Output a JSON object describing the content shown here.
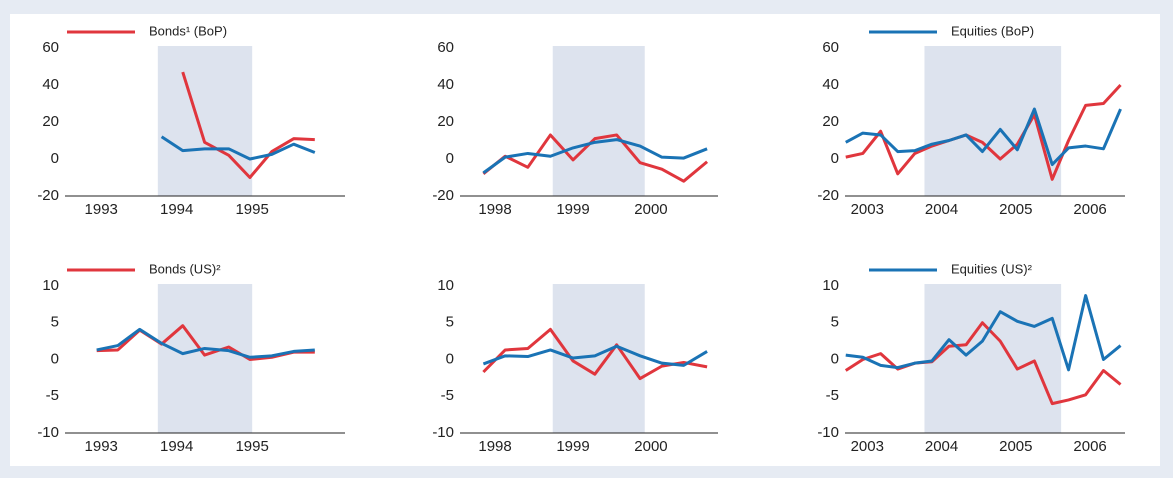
{
  "chart_data": [
    {
      "type": "line",
      "x": [
        1994.3,
        1994.58,
        1994.87,
        1995.19,
        1995.47,
        1995.76,
        1996.05,
        1996.33
      ],
      "xlim": [
        1993.02,
        1996.73
      ],
      "xticks": [
        {
          "value": 1993.5,
          "label": "1993"
        },
        {
          "value": 1994.5,
          "label": "1994"
        },
        {
          "value": 1995.5,
          "label": "1995"
        }
      ],
      "ylim": [
        -20,
        60
      ],
      "yticks": [
        -20,
        0,
        20,
        40,
        60
      ],
      "shade": [
        1994.25,
        1995.5
      ],
      "series": [
        {
          "name": "Bonds¹ (BoP)",
          "color": "#e0363d",
          "values": [
            null,
            47,
            9,
            2,
            -10,
            4,
            11,
            10.5
          ]
        },
        {
          "color": "#1a73b5",
          "values": [
            12,
            4.5,
            5.5,
            5.5,
            0,
            2.5,
            8,
            3.5
          ]
        }
      ]
    },
    {
      "type": "line",
      "x": [
        1998.35,
        1998.63,
        1998.92,
        1999.21,
        1999.5,
        1999.78,
        2000.06,
        2000.36,
        2000.64,
        2000.92,
        2001.22
      ],
      "xlim": [
        1998.05,
        2001.36
      ],
      "xticks": [
        {
          "value": 1998.5,
          "label": "1998"
        },
        {
          "value": 1999.5,
          "label": "1999"
        },
        {
          "value": 2000.5,
          "label": "2000"
        }
      ],
      "ylim": [
        -20,
        60
      ],
      "yticks": [
        -20,
        0,
        20,
        40,
        60
      ],
      "shade": [
        1999.24,
        2000.42
      ],
      "series": [
        {
          "color": "#e0363d",
          "values": [
            -8,
            1.5,
            -4.5,
            13,
            -0.5,
            11,
            13,
            -2,
            -5.5,
            -12,
            -1.5
          ]
        },
        {
          "color": "#1a73b5",
          "values": [
            -7.5,
            1,
            3,
            1.5,
            6,
            9,
            10.5,
            7,
            1,
            0.5,
            5.5
          ]
        }
      ]
    },
    {
      "type": "line",
      "x": [
        2003.21,
        2003.44,
        2003.68,
        2003.91,
        2004.14,
        2004.37,
        2004.6,
        2004.83,
        2005.05,
        2005.29,
        2005.52,
        2005.75,
        2005.99,
        2006.21,
        2006.44,
        2006.68,
        2006.91
      ],
      "xlim": [
        2003.2,
        2006.97
      ],
      "xticks": [
        {
          "value": 2003.5,
          "label": "2003"
        },
        {
          "value": 2004.5,
          "label": "2004"
        },
        {
          "value": 2005.5,
          "label": "2005"
        },
        {
          "value": 2006.5,
          "label": "2006"
        }
      ],
      "ylim": [
        -20,
        60
      ],
      "yticks": [
        -20,
        0,
        20,
        40,
        60
      ],
      "shade": [
        2004.27,
        2006.11
      ],
      "series": [
        {
          "color": "#e0363d",
          "values": [
            1,
            3,
            15,
            -8,
            3,
            7,
            10,
            13,
            9,
            0,
            8,
            24,
            -11,
            10,
            29,
            30,
            40
          ]
        },
        {
          "name": "Equities (BoP)",
          "color": "#1a73b5",
          "values": [
            9,
            14,
            13,
            4,
            4.5,
            8,
            10,
            13,
            4,
            16,
            5,
            27,
            -3,
            6,
            7,
            5.5,
            27
          ]
        }
      ]
    },
    {
      "type": "line",
      "x": [
        1993.44,
        1993.72,
        1994.01,
        1994.3,
        1994.58,
        1994.87,
        1995.19,
        1995.47,
        1995.76,
        1996.05,
        1996.33
      ],
      "xlim": [
        1993.02,
        1996.73
      ],
      "xticks": [
        {
          "value": 1993.5,
          "label": "1993"
        },
        {
          "value": 1994.5,
          "label": "1994"
        },
        {
          "value": 1995.5,
          "label": "1995"
        }
      ],
      "ylim": [
        -10,
        10
      ],
      "yticks": [
        -10,
        -5,
        0,
        5,
        10
      ],
      "shade": [
        1994.25,
        1995.5
      ],
      "series": [
        {
          "name": "Bonds (US)²",
          "color": "#e0363d",
          "values": [
            1.2,
            1.3,
            4,
            2.1,
            4.6,
            0.6,
            1.7,
            0,
            0.3,
            1,
            1
          ]
        },
        {
          "color": "#1a73b5",
          "values": [
            1.3,
            1.9,
            4.1,
            2.2,
            0.8,
            1.5,
            1.2,
            0.3,
            0.5,
            1.1,
            1.3
          ]
        }
      ]
    },
    {
      "type": "line",
      "x": [
        1998.35,
        1998.63,
        1998.92,
        1999.21,
        1999.5,
        1999.78,
        2000.06,
        2000.36,
        2000.64,
        2000.92,
        2001.22
      ],
      "xlim": [
        1998.05,
        2001.36
      ],
      "xticks": [
        {
          "value": 1998.5,
          "label": "1998"
        },
        {
          "value": 1999.5,
          "label": "1999"
        },
        {
          "value": 2000.5,
          "label": "2000"
        }
      ],
      "ylim": [
        -10,
        10
      ],
      "yticks": [
        -10,
        -5,
        0,
        5,
        10
      ],
      "shade": [
        1999.24,
        2000.42
      ],
      "series": [
        {
          "color": "#e0363d",
          "values": [
            -1.7,
            1.3,
            1.5,
            4.1,
            -0.2,
            -2,
            2,
            -2.6,
            -0.9,
            -0.4,
            -1
          ]
        },
        {
          "color": "#1a73b5",
          "values": [
            -0.6,
            0.5,
            0.4,
            1.3,
            0.2,
            0.5,
            1.8,
            0.5,
            -0.5,
            -0.8,
            1.1
          ]
        }
      ]
    },
    {
      "type": "line",
      "x": [
        2003.21,
        2003.44,
        2003.68,
        2003.91,
        2004.14,
        2004.37,
        2004.6,
        2004.83,
        2005.05,
        2005.29,
        2005.52,
        2005.75,
        2005.99,
        2006.21,
        2006.44,
        2006.68,
        2006.91
      ],
      "xlim": [
        2003.2,
        2006.97
      ],
      "xticks": [
        {
          "value": 2003.5,
          "label": "2003"
        },
        {
          "value": 2004.5,
          "label": "2004"
        },
        {
          "value": 2005.5,
          "label": "2005"
        },
        {
          "value": 2006.5,
          "label": "2006"
        }
      ],
      "ylim": [
        -10,
        10
      ],
      "yticks": [
        -10,
        -5,
        0,
        5,
        10
      ],
      "shade": [
        2004.27,
        2006.11
      ],
      "series": [
        {
          "color": "#e0363d",
          "values": [
            -1.5,
            0,
            0.8,
            -1.3,
            -0.5,
            -0.3,
            1.8,
            2,
            5,
            2.5,
            -1.3,
            -0.2,
            -6,
            -5.5,
            -4.8,
            -1.5,
            -3.4
          ]
        },
        {
          "name": "Equities (US)²",
          "color": "#1a73b5",
          "values": [
            0.6,
            0.3,
            -0.8,
            -1.1,
            -0.5,
            -0.2,
            2.7,
            0.6,
            2.5,
            6.5,
            5.2,
            4.5,
            5.6,
            -1.4,
            8.7,
            0,
            1.9
          ]
        }
      ]
    }
  ]
}
